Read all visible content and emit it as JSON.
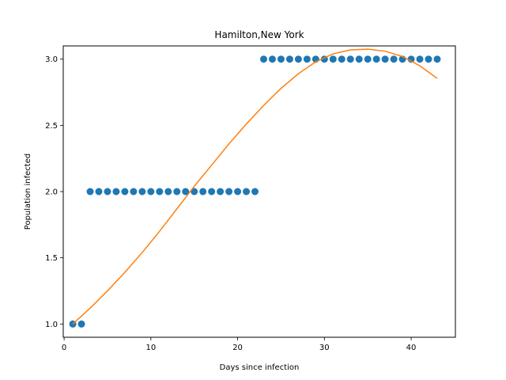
{
  "chart_data": {
    "type": "scatter",
    "title": "Hamilton,New York",
    "xlabel": "Days since infection",
    "ylabel": "Population infected",
    "xlim": [
      -0.1,
      45.1
    ],
    "ylim": [
      0.9,
      3.1
    ],
    "xticks": [
      0,
      10,
      20,
      30,
      40
    ],
    "yticks": [
      1.0,
      1.5,
      2.0,
      2.5,
      3.0
    ],
    "xtick_labels": [
      "0",
      "10",
      "20",
      "30",
      "40"
    ],
    "ytick_labels": [
      "1.0",
      "1.5",
      "2.0",
      "2.5",
      "3.0"
    ],
    "grid": false,
    "series": [
      {
        "kind": "scatter",
        "color": "#1f77b4",
        "x": [
          1,
          2,
          3,
          4,
          5,
          6,
          7,
          8,
          9,
          10,
          11,
          12,
          13,
          14,
          15,
          16,
          17,
          18,
          19,
          20,
          21,
          22,
          23,
          24,
          25,
          26,
          27,
          28,
          29,
          30,
          31,
          32,
          33,
          34,
          35,
          36,
          37,
          38,
          39,
          40,
          41,
          42,
          43
        ],
        "y": [
          1,
          1,
          2,
          2,
          2,
          2,
          2,
          2,
          2,
          2,
          2,
          2,
          2,
          2,
          2,
          2,
          2,
          2,
          2,
          2,
          2,
          2,
          3,
          3,
          3,
          3,
          3,
          3,
          3,
          3,
          3,
          3,
          3,
          3,
          3,
          3,
          3,
          3,
          3,
          3,
          3,
          3,
          3
        ]
      },
      {
        "kind": "line",
        "color": "#ff7f0e",
        "x": [
          1,
          3,
          5,
          7,
          9,
          11,
          13,
          15,
          17,
          19,
          21,
          23,
          25,
          27,
          29,
          31,
          33,
          35,
          37,
          39,
          41,
          43
        ],
        "y": [
          1.0,
          1.12,
          1.25,
          1.39,
          1.54,
          1.7,
          1.87,
          2.04,
          2.2,
          2.36,
          2.51,
          2.65,
          2.78,
          2.89,
          2.98,
          3.04,
          3.07,
          3.075,
          3.06,
          3.02,
          2.95,
          2.855
        ]
      }
    ]
  }
}
